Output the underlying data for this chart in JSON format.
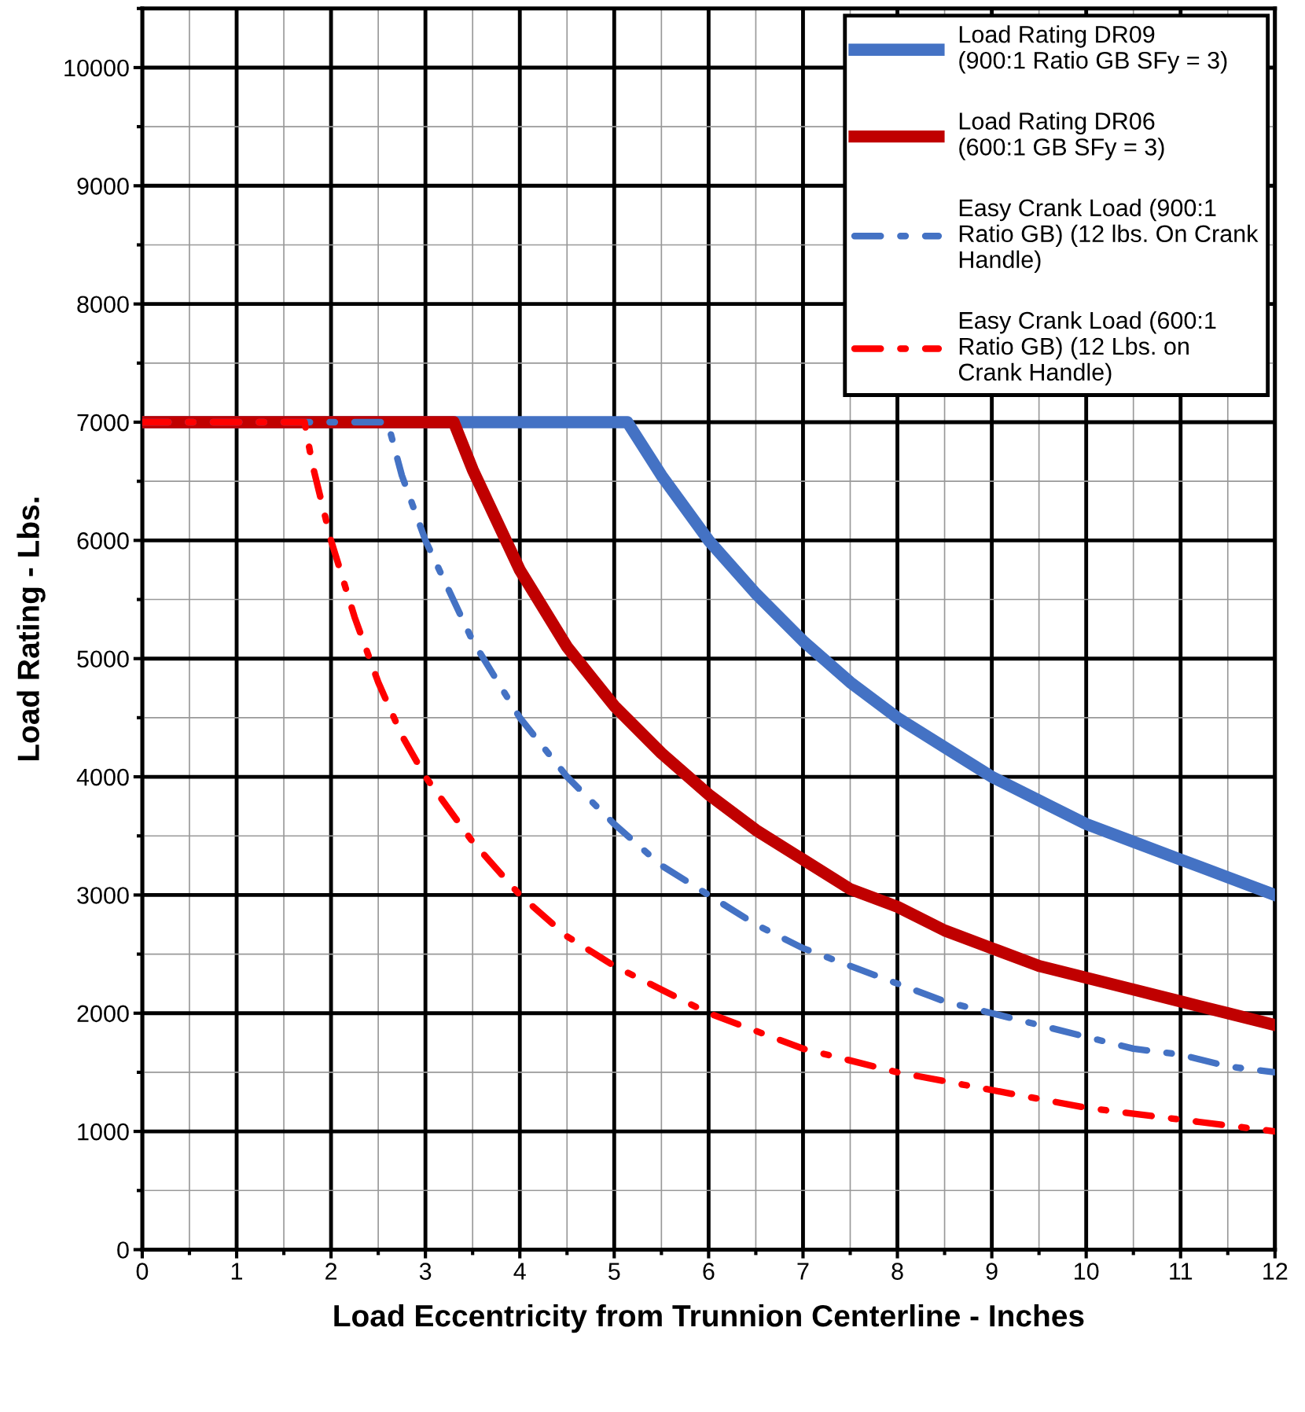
{
  "chart_data": {
    "type": "line",
    "xlabel": "Load Eccentricity from Trunnion Centerline - Inches",
    "ylabel": "Load Rating - Lbs.",
    "xlim": [
      0,
      12
    ],
    "xticks": [
      0,
      1,
      2,
      3,
      4,
      5,
      6,
      7,
      8,
      9,
      10,
      11,
      12
    ],
    "ylim": [
      0,
      10500
    ],
    "yticks": [
      0,
      1000,
      2000,
      3000,
      4000,
      5000,
      6000,
      7000,
      8000,
      9000,
      10000
    ],
    "grid": true,
    "legend": "top right",
    "marker": "none",
    "series": [
      {
        "name": "Load Rating DR09\n(900:1 Ratio GB SFy = 3)",
        "color": "#4472c4",
        "line_style": "solid",
        "x": [
          0,
          5.14,
          5.5,
          6,
          6.5,
          7,
          7.5,
          8,
          8.5,
          9,
          9.5,
          10,
          10.5,
          11,
          11.5,
          12
        ],
        "values": [
          7000,
          7000,
          6550,
          6000,
          5550,
          5150,
          4800,
          4500,
          4250,
          4000,
          3800,
          3600,
          3450,
          3300,
          3150,
          3000
        ]
      },
      {
        "name": "Load Rating DR06\n(600:1 GB SFy = 3)",
        "color": "#c00000",
        "line_style": "solid",
        "x": [
          0,
          3.3,
          3.5,
          4,
          4.5,
          5,
          5.5,
          6,
          6.5,
          7,
          7.5,
          8,
          8.5,
          9,
          9.5,
          10,
          10.5,
          11,
          11.5,
          12
        ],
        "values": [
          7000,
          7000,
          6600,
          5750,
          5100,
          4600,
          4200,
          3850,
          3550,
          3300,
          3050,
          2900,
          2700,
          2550,
          2400,
          2300,
          2200,
          2100,
          2000,
          1900
        ]
      },
      {
        "name": "Easy Crank Load (900:1\nRatio GB) (12 lbs. On Crank\nHandle)",
        "color": "#4472c4",
        "line_style": "dashdot",
        "x": [
          0,
          2.6,
          2.75,
          3,
          3.5,
          4,
          4.5,
          5,
          5.5,
          6,
          6.5,
          7,
          7.5,
          8,
          8.5,
          9,
          9.5,
          10,
          10.5,
          11,
          11.5,
          12
        ],
        "values": [
          7000,
          7000,
          6550,
          6000,
          5150,
          4500,
          4000,
          3600,
          3250,
          3000,
          2750,
          2550,
          2400,
          2250,
          2100,
          2000,
          1900,
          1800,
          1700,
          1650,
          1550,
          1500
        ]
      },
      {
        "name": "Easy Crank Load (600:1\nRatio GB) (12 Lbs. on\nCrank Handle)",
        "color": "#ff0000",
        "line_style": "dashdot",
        "x": [
          0,
          1.72,
          1.8,
          2,
          2.25,
          2.5,
          2.75,
          3,
          3.5,
          4,
          4.5,
          5,
          5.5,
          6,
          6.5,
          7,
          7.5,
          8,
          9,
          10,
          11,
          12
        ],
        "values": [
          7000,
          7000,
          6650,
          6000,
          5350,
          4800,
          4350,
          4000,
          3450,
          3000,
          2650,
          2400,
          2200,
          2000,
          1850,
          1700,
          1600,
          1500,
          1350,
          1200,
          1100,
          1000
        ]
      }
    ]
  }
}
